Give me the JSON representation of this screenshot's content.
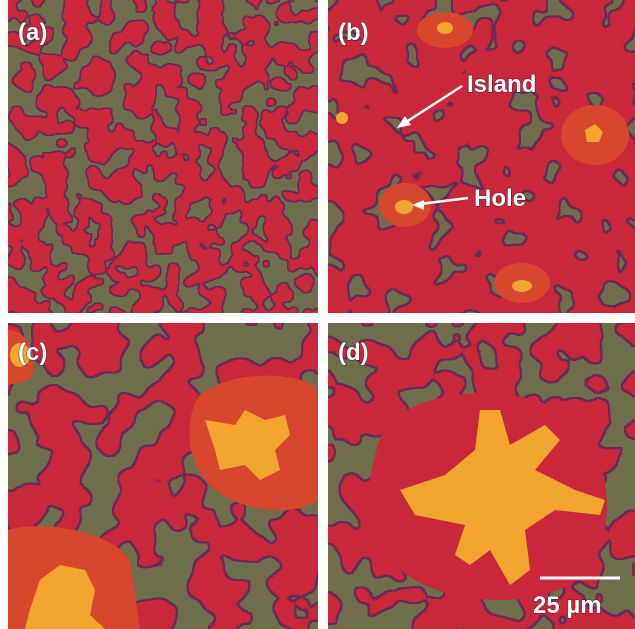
{
  "panels": [
    {
      "label": "(a)"
    },
    {
      "label": "(b)"
    },
    {
      "label": "(c)"
    },
    {
      "label": "(d)"
    }
  ],
  "annotations": {
    "island": "Island",
    "hole": "Hole"
  },
  "scale_bar": "25 µm"
}
